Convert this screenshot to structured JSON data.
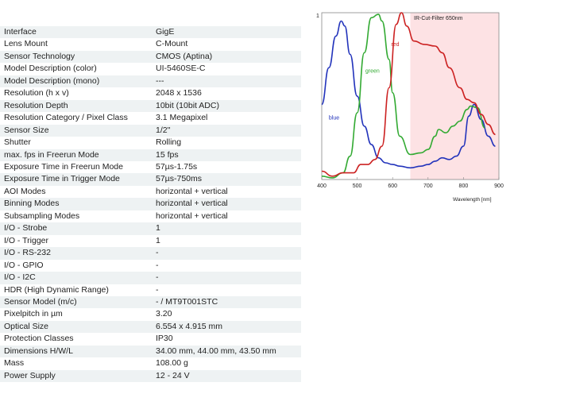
{
  "specs": [
    {
      "label": "Interface",
      "value": "GigE"
    },
    {
      "label": "Lens Mount",
      "value": "C-Mount"
    },
    {
      "label": "Sensor Technology",
      "value": "CMOS (Aptina)"
    },
    {
      "label": "Model Description (color)",
      "value": "UI-5460SE-C"
    },
    {
      "label": "Model Description (mono)",
      "value": "---"
    },
    {
      "label": "Resolution (h x v)",
      "value": "2048 x 1536"
    },
    {
      "label": "Resolution Depth",
      "value": "10bit (10bit ADC)"
    },
    {
      "label": "Resolution Category / Pixel Class",
      "value": "3.1 Megapixel"
    },
    {
      "label": "Sensor Size",
      "value": "1/2\""
    },
    {
      "label": "Shutter",
      "value": "Rolling"
    },
    {
      "label": "max. fps in Freerun Mode",
      "value": "15 fps"
    },
    {
      "label": "Exposure Time in Freerun Mode",
      "value": "57µs-1.75s"
    },
    {
      "label": "Exposure Time in Trigger Mode",
      "value": "57µs-750ms"
    },
    {
      "label": "AOI Modes",
      "value": "horizontal + vertical"
    },
    {
      "label": "Binning Modes",
      "value": "horizontal + vertical"
    },
    {
      "label": "Subsampling Modes",
      "value": "horizontal + vertical"
    },
    {
      "label": "I/O - Strobe",
      "value": "1"
    },
    {
      "label": "I/O - Trigger",
      "value": "1"
    },
    {
      "label": "I/O - RS-232",
      "value": "-"
    },
    {
      "label": "I/O - GPIO",
      "value": "-"
    },
    {
      "label": "I/O - I2C",
      "value": "-"
    },
    {
      "label": "HDR (High Dynamic Range)",
      "value": "-"
    },
    {
      "label": "Sensor Model (m/c)",
      "value": "- / MT9T001STC"
    },
    {
      "label": "Pixelpitch in µm",
      "value": "3.20"
    },
    {
      "label": "Optical Size",
      "value": "6.554 x 4.915 mm"
    },
    {
      "label": "Protection Classes",
      "value": "IP30"
    },
    {
      "label": "Dimensions H/W/L",
      "value": "34.00 mm, 44.00 mm, 43.50 mm"
    },
    {
      "label": "Mass",
      "value": "108.00 g"
    },
    {
      "label": "Power Supply",
      "value": "12 - 24 V"
    }
  ],
  "colors": {
    "row_alt": "#eef2f3",
    "ir_band": "#fde2e4",
    "blue": "#2233bb",
    "green": "#33aa33",
    "red": "#cc2222"
  },
  "chart_data": {
    "type": "line",
    "title": "",
    "xlabel": "Wavelength [nm]",
    "ylabel": "",
    "xlim": [
      400,
      900
    ],
    "ylim": [
      0,
      1
    ],
    "x_ticks": [
      "400",
      "500",
      "600",
      "700",
      "800",
      "900"
    ],
    "y_ticks": [
      "1"
    ],
    "grid": false,
    "legend": "inline labels",
    "annotation": "IR-Cut-Filter 650nm",
    "shaded_region": [
      650,
      900
    ],
    "series": [
      {
        "name": "blue",
        "color": "#2233bb",
        "x": [
          400,
          420,
          440,
          455,
          465,
          480,
          500,
          520,
          540,
          560,
          580,
          600,
          620,
          650,
          680,
          700,
          720,
          740,
          760,
          780,
          800,
          815,
          830,
          850,
          870,
          890
        ],
        "y": [
          0.45,
          0.67,
          0.86,
          0.95,
          0.92,
          0.75,
          0.5,
          0.32,
          0.21,
          0.13,
          0.1,
          0.09,
          0.08,
          0.07,
          0.08,
          0.09,
          0.11,
          0.13,
          0.12,
          0.14,
          0.2,
          0.38,
          0.45,
          0.36,
          0.26,
          0.2
        ]
      },
      {
        "name": "green",
        "color": "#33aa33",
        "x": [
          400,
          430,
          460,
          480,
          500,
          520,
          540,
          560,
          570,
          590,
          600,
          620,
          650,
          680,
          700,
          720,
          730,
          750,
          770,
          790,
          810,
          820,
          840,
          860
        ],
        "y": [
          0.02,
          0.01,
          0.04,
          0.14,
          0.4,
          0.76,
          0.97,
          0.99,
          0.95,
          0.72,
          0.52,
          0.26,
          0.15,
          0.16,
          0.18,
          0.26,
          0.3,
          0.28,
          0.32,
          0.35,
          0.42,
          0.44,
          0.43,
          0.31
        ]
      },
      {
        "name": "red",
        "color": "#cc2222",
        "x": [
          400,
          430,
          460,
          490,
          510,
          530,
          550,
          570,
          590,
          610,
          625,
          640,
          660,
          690,
          720,
          740,
          760,
          790,
          810,
          830,
          850,
          870,
          890
        ],
        "y": [
          0.05,
          0.02,
          0.04,
          0.04,
          0.09,
          0.09,
          0.12,
          0.2,
          0.55,
          0.93,
          1.0,
          0.92,
          0.83,
          0.81,
          0.8,
          0.76,
          0.67,
          0.55,
          0.48,
          0.46,
          0.39,
          0.33,
          0.27
        ]
      }
    ]
  }
}
